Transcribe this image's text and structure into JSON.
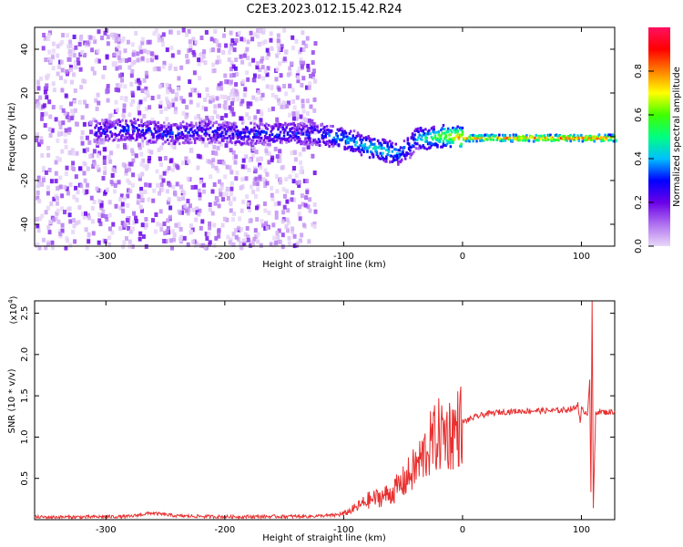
{
  "title": "C2E3.2023.012.15.42.R24",
  "chart_data": [
    {
      "type": "heatmap",
      "xlabel": "Height of straight line (km)",
      "ylabel": "Frequency (Hz)",
      "xlim": [
        -360,
        128
      ],
      "ylim": [
        -50,
        50
      ],
      "x_ticks": [
        -300,
        -200,
        -100,
        0,
        100
      ],
      "y_ticks": [
        -40,
        -20,
        0,
        20,
        40
      ],
      "colorbar": {
        "label": "Normalized spectral amplitude",
        "range": [
          0.0,
          1.0
        ],
        "ticks": [
          0.0,
          0.2,
          0.4,
          0.6,
          0.8
        ],
        "colormap": [
          "#e8d8f8",
          "#b070f0",
          "#6a00e8",
          "#0000ff",
          "#00c0ff",
          "#00ff80",
          "#40ff00",
          "#ffff00",
          "#ff8000",
          "#ff0000",
          "#ff1060"
        ]
      },
      "ridge": {
        "x": [
          -310,
          -280,
          -250,
          -220,
          -190,
          -160,
          -130,
          -110,
          -95,
          -80,
          -65,
          -55,
          -45,
          -40,
          -30,
          -15,
          0,
          50,
          100,
          128
        ],
        "frequency": [
          3,
          4,
          2,
          3,
          2,
          2,
          2,
          1,
          -1,
          -4,
          -6,
          -7,
          -4,
          0,
          0,
          1,
          0,
          0,
          0,
          0
        ],
        "amplitude": [
          0.25,
          0.3,
          0.3,
          0.28,
          0.3,
          0.3,
          0.3,
          0.35,
          0.4,
          0.45,
          0.45,
          0.4,
          0.35,
          0.4,
          0.5,
          0.65,
          0.8,
          0.85,
          0.85,
          0.85
        ]
      },
      "scatter_band": {
        "x_range": [
          -360,
          -125
        ],
        "frequency_range": [
          -50,
          50
        ],
        "amplitude": "low (0.0-0.2)"
      }
    },
    {
      "type": "line",
      "xlabel": "Height of straight line (km)",
      "ylabel": "SNR (10 * v/v)",
      "y_scale_label": "(x10",
      "y_scale_exp": "4",
      "y_scale_close": ")",
      "xlim": [
        -360,
        128
      ],
      "ylim": [
        0,
        26500
      ],
      "x_ticks": [
        -300,
        -200,
        -100,
        0,
        100
      ],
      "y_ticks": [
        0.5,
        1.0,
        1.5,
        2.0,
        2.5
      ],
      "y_tick_labels": [
        "0.5",
        "1.0",
        "1.5",
        "2.0",
        "2.5"
      ],
      "series": [
        {
          "color": "#e83030",
          "x": [
            -360,
            -320,
            -280,
            -262,
            -240,
            -200,
            -160,
            -130,
            -110,
            -100,
            -90,
            -80,
            -70,
            -60,
            -50,
            -40,
            -35,
            -30,
            -25,
            -20,
            -15,
            -10,
            -5,
            0,
            10,
            20,
            30,
            40,
            60,
            80,
            95,
            97,
            99,
            100,
            102,
            105,
            107,
            108,
            109,
            110,
            112,
            115,
            120,
            128
          ],
          "y": [
            300,
            320,
            380,
            800,
            450,
            350,
            380,
            400,
            500,
            700,
            1400,
            2300,
            2700,
            3200,
            4500,
            6200,
            7200,
            8500,
            9500,
            10200,
            10500,
            10500,
            11000,
            11800,
            12400,
            12800,
            13000,
            13100,
            13200,
            13200,
            13500,
            14200,
            11500,
            13300,
            13200,
            12800,
            17000,
            3000,
            26500,
            1500,
            13000,
            13100,
            13000,
            13100
          ]
        }
      ]
    }
  ]
}
